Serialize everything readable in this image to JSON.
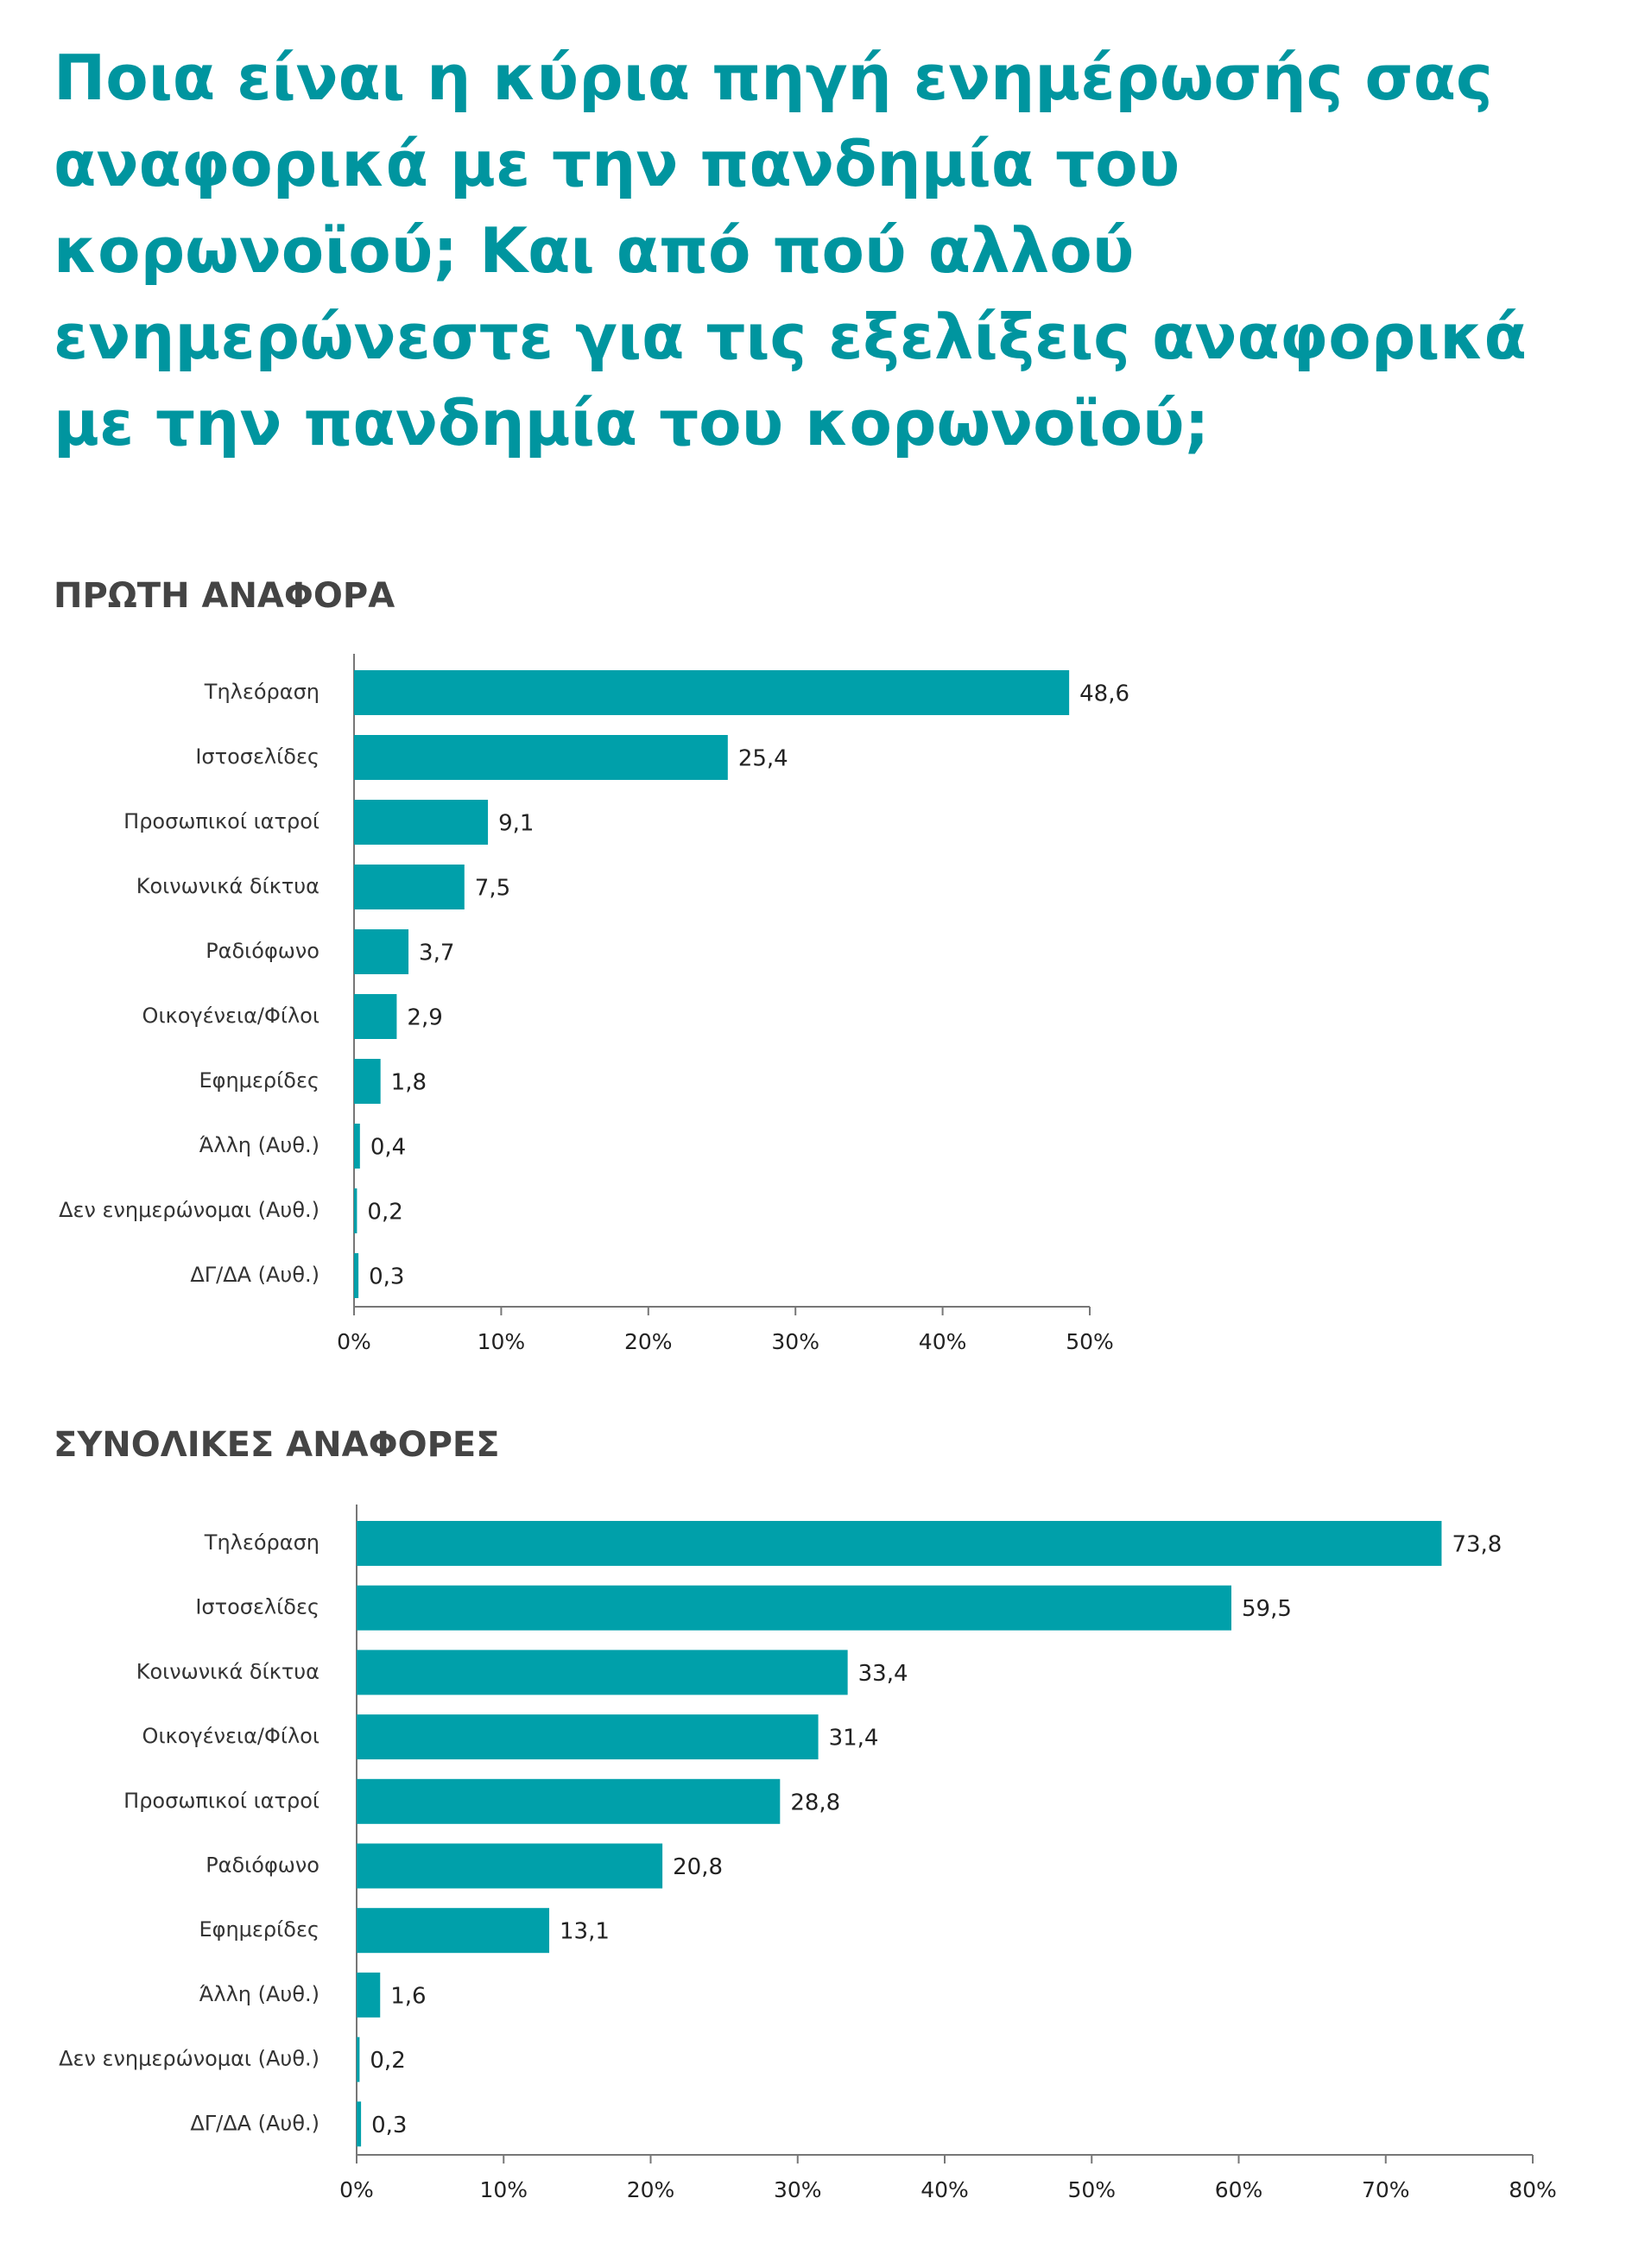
{
  "title": "Ποια είναι η κύρια πηγή ενημέρωσής σας αναφορικά με την πανδημία του κορωνοϊού; Και από πού αλλού ενημερώνεστε για τις εξελίξεις αναφορικά με την πανδημία του κορωνοϊού;",
  "chart_data": [
    {
      "type": "bar",
      "orientation": "horizontal",
      "title": "ΠΡΩΤΗ ΑΝΑΦΟΡΑ",
      "color": "#00a0aa",
      "categories": [
        "Τηλεόραση",
        "Ιστοσελίδες",
        "Προσωπικοί ιατροί",
        "Κοινωνικά δίκτυα",
        "Ραδιόφωνο",
        "Οικογένεια/Φίλοι",
        "Εφημερίδες",
        "Άλλη (Αυθ.)",
        "Δεν ενημερώνομαι (Αυθ.)",
        "ΔΓ/ΔΑ (Αυθ.)"
      ],
      "values": [
        48.6,
        25.4,
        9.1,
        7.5,
        3.7,
        2.9,
        1.8,
        0.4,
        0.2,
        0.3
      ],
      "value_labels": [
        "48,6",
        "25,4",
        "9,1",
        "7,5",
        "3,7",
        "2,9",
        "1,8",
        "0,4",
        "0,2",
        "0,3"
      ],
      "xlim": [
        0,
        50
      ],
      "xticks": [
        {
          "value": 0,
          "label": "0%"
        },
        {
          "value": 10,
          "label": "10%"
        },
        {
          "value": 20,
          "label": "20%"
        },
        {
          "value": 30,
          "label": "30%"
        },
        {
          "value": 40,
          "label": "40%"
        },
        {
          "value": 50,
          "label": "50%"
        }
      ]
    },
    {
      "type": "bar",
      "orientation": "horizontal",
      "title": "ΣΥΝΟΛΙΚΕΣ ΑΝΑΦΟΡΕΣ",
      "color": "#00a0aa",
      "categories": [
        "Τηλεόραση",
        "Ιστοσελίδες",
        "Κοινωνικά δίκτυα",
        "Οικογένεια/Φίλοι",
        "Προσωπικοί ιατροί",
        "Ραδιόφωνο",
        "Εφημερίδες",
        "Άλλη (Αυθ.)",
        "Δεν ενημερώνομαι (Αυθ.)",
        "ΔΓ/ΔΑ (Αυθ.)"
      ],
      "values": [
        73.8,
        59.5,
        33.4,
        31.4,
        28.8,
        20.8,
        13.1,
        1.6,
        0.2,
        0.3
      ],
      "value_labels": [
        "73,8",
        "59,5",
        "33,4",
        "31,4",
        "28,8",
        "20,8",
        "13,1",
        "1,6",
        "0,2",
        "0,3"
      ],
      "xlim": [
        0,
        80
      ],
      "xticks": [
        {
          "value": 0,
          "label": "0%"
        },
        {
          "value": 10,
          "label": "10%"
        },
        {
          "value": 20,
          "label": "20%"
        },
        {
          "value": 30,
          "label": "30%"
        },
        {
          "value": 40,
          "label": "40%"
        },
        {
          "value": 50,
          "label": "50%"
        },
        {
          "value": 60,
          "label": "60%"
        },
        {
          "value": 70,
          "label": "70%"
        },
        {
          "value": 80,
          "label": "80%"
        }
      ]
    }
  ]
}
